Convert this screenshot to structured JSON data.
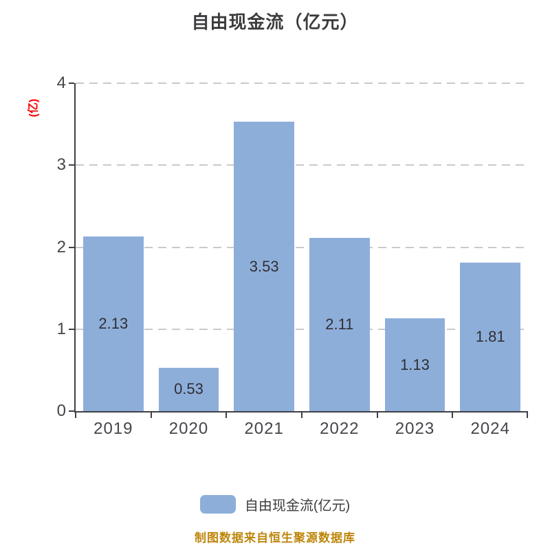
{
  "page": {
    "background": "#FFFFFF"
  },
  "chart_data": {
    "type": "bar",
    "title": "自由现金流（亿元）",
    "ylabel": "(亿)",
    "xlabel": "",
    "categories": [
      "2019",
      "2020",
      "2021",
      "2022",
      "2023",
      "2024"
    ],
    "series": [
      {
        "name": "自由现金流(亿元)",
        "values": [
          2.13,
          0.53,
          3.53,
          2.11,
          1.13,
          1.81
        ]
      }
    ],
    "value_labels": [
      "2.13",
      "0.53",
      "3.53",
      "2.11",
      "1.13",
      "1.81"
    ],
    "ylim": [
      0,
      4
    ],
    "yticks": [
      0,
      1,
      2,
      3,
      4
    ],
    "grid": "horizontal-dashed",
    "legend_position": "bottom",
    "colors": {
      "bar": "#8EAEDA",
      "gridline": "#CACACA",
      "axis": "#3F3F46",
      "tick_label": "#45454B",
      "value_label": "#2F2F33",
      "title": "#3C3C3F",
      "ylabel": "#FF0000"
    }
  },
  "legend": {
    "label": "自由现金流(亿元)"
  },
  "footer": {
    "text": "制图数据来自恒生聚源数据库",
    "color": "#BE860B"
  }
}
